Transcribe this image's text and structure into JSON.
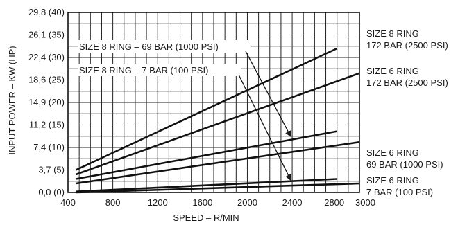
{
  "chart_data": {
    "type": "line",
    "xlabel": "SPEED – R/MIN",
    "ylabel": "INPUT POWER – KW (HP)",
    "xlim": [
      400,
      3000
    ],
    "ylim": [
      0,
      40
    ],
    "x_ticks": [
      400,
      800,
      1200,
      1600,
      2000,
      2400,
      2800,
      3000
    ],
    "x_tick_labels": [
      "400",
      "800",
      "1200",
      "1600",
      "2000",
      "2400",
      "2800",
      "3000"
    ],
    "y_ticks": [
      0,
      5,
      10,
      15,
      20,
      25,
      30,
      35,
      40
    ],
    "y_tick_labels": [
      "0,0 (0)",
      "3,7 (5)",
      "7,4 (10)",
      "11,2 (15)",
      "14,9 (20)",
      "18,6 (25)",
      "22,4 (30)",
      "26,1 (35)",
      "29,8 (40)"
    ],
    "grid": true,
    "series": [
      {
        "name": "SIZE 8 RING 172 BAR (2500 PSI)",
        "label_lines": [
          "SIZE 8 RING",
          "172 BAR (2500 PSI)"
        ],
        "x": [
          470,
          2800
        ],
        "y": [
          5,
          32
        ]
      },
      {
        "name": "SIZE 6 RING 172 BAR (2500 PSI)",
        "label_lines": [
          "SIZE 6 RING",
          "172 BAR (2500 PSI)"
        ],
        "x": [
          470,
          3000
        ],
        "y": [
          4,
          26.5
        ]
      },
      {
        "name": "SIZE 8 RING – 69 BAR (1000 PSI)",
        "x": [
          470,
          2800
        ],
        "y": [
          3,
          13.6
        ]
      },
      {
        "name": "SIZE 6 RING 69 BAR (1000 PSI)",
        "label_lines": [
          "SIZE 6 RING",
          "69 BAR (1000 PSI)"
        ],
        "x": [
          470,
          3000
        ],
        "y": [
          2,
          11.2
        ]
      },
      {
        "name": "SIZE 8 RING – 7 BAR (100 PSI)",
        "x": [
          470,
          2800
        ],
        "y": [
          0.2,
          3
        ]
      },
      {
        "name": "SIZE 6 RING 7 BAR (100 PSI)",
        "label_lines": [
          "SIZE 6 RING",
          "7 BAR (100 PSI)"
        ],
        "x": [
          470,
          3000
        ],
        "y": [
          0,
          2
        ]
      }
    ],
    "annotations": [
      {
        "text": "SIZE 8 RING – 69 BAR (1000 PSI)",
        "arrow_to": {
          "x": 2400,
          "y": 12.1
        }
      },
      {
        "text": "SIZE 8 RING – 7 BAR (100 PSI)",
        "arrow_to": {
          "x": 2400,
          "y": 2.4
        }
      }
    ]
  }
}
